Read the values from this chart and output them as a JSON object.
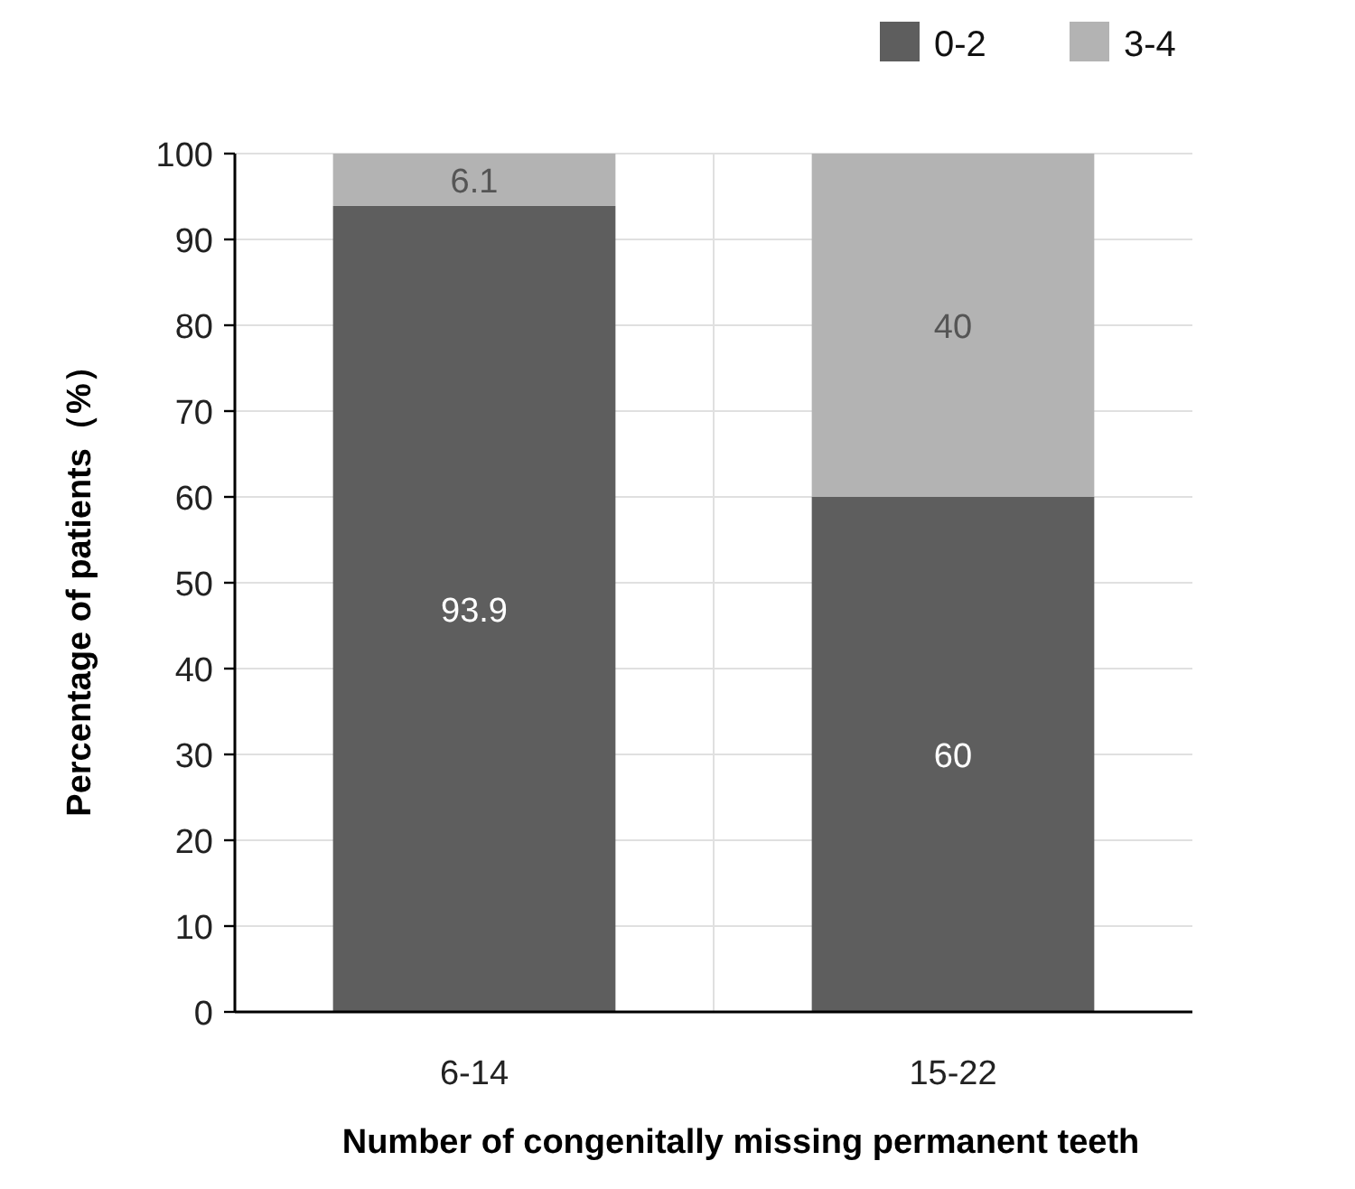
{
  "chart_data": {
    "type": "bar",
    "stacked": true,
    "xlabel": "Number of congenitally missing permanent teeth",
    "ylabel": "Percentage of patients（%）",
    "categories": [
      "6-14",
      "15-22"
    ],
    "series": [
      {
        "name": "0-2",
        "color": "#5e5e5e",
        "values": [
          93.9,
          60
        ]
      },
      {
        "name": "3-4",
        "color": "#b3b3b3",
        "values": [
          6.1,
          40
        ]
      }
    ],
    "ylim": [
      0,
      100
    ],
    "yticks": [
      0,
      10,
      20,
      30,
      40,
      50,
      60,
      70,
      80,
      90,
      100
    ],
    "grid": true,
    "legend": "top right",
    "data_labels": true
  }
}
